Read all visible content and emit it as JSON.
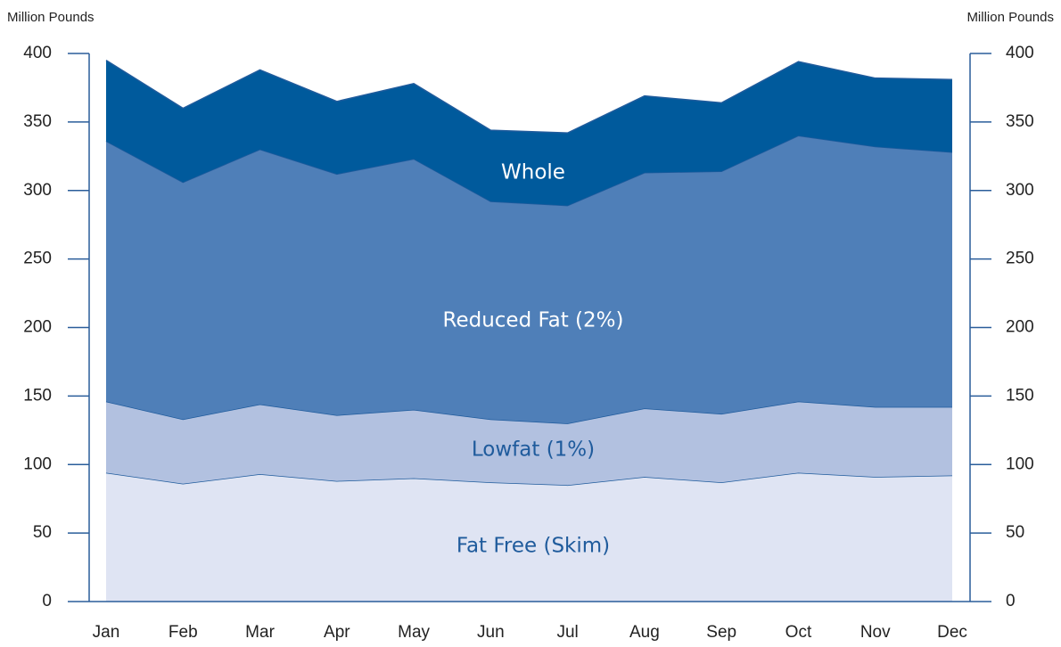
{
  "chart_data": {
    "type": "stacked_area",
    "y_label": "Million Pounds",
    "y2_label": "Million Pounds",
    "categories": [
      "Jan",
      "Feb",
      "Mar",
      "Apr",
      "May",
      "Jun",
      "Jul",
      "Aug",
      "Sep",
      "Oct",
      "Nov",
      "Dec"
    ],
    "series": [
      {
        "name": "Fat Free (Skim)",
        "color": "#dfe4f3",
        "values": [
          94,
          86,
          93,
          88,
          90,
          87,
          85,
          91,
          87,
          94,
          91,
          92
        ]
      },
      {
        "name": "Lowfat (1%)",
        "color": "#b2c1e0",
        "values": [
          52,
          47,
          51,
          48,
          50,
          46,
          45,
          50,
          50,
          52,
          51,
          50
        ]
      },
      {
        "name": "Reduced Fat (2%)",
        "color": "#4f7fb8",
        "values": [
          190,
          173,
          186,
          176,
          183,
          159,
          159,
          172,
          177,
          194,
          190,
          186
        ]
      },
      {
        "name": "Whole",
        "color": "#005a9c",
        "values": [
          59,
          54,
          58,
          53,
          55,
          52,
          53,
          56,
          50,
          54,
          50,
          53
        ]
      }
    ],
    "ylim": [
      0,
      400
    ],
    "yticks": [
      0,
      50,
      100,
      150,
      200,
      250,
      300,
      350,
      400
    ],
    "y2lim": [
      0,
      400
    ],
    "y2ticks": [
      0,
      50,
      100,
      150,
      200,
      250,
      300,
      350,
      400
    ]
  }
}
